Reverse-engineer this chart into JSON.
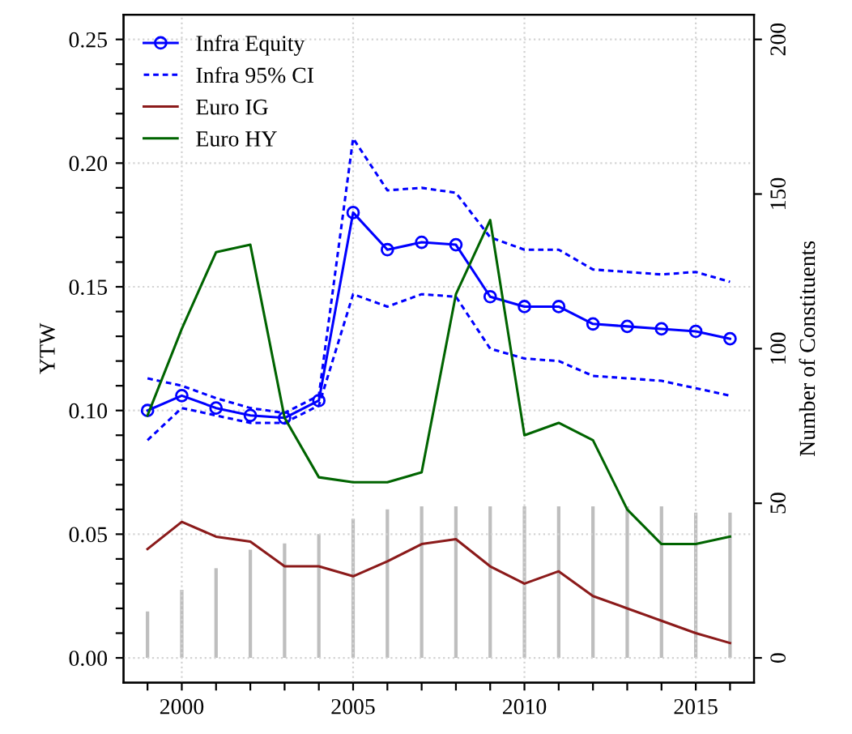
{
  "chart_data": {
    "type": "line",
    "ylabel": "YTW",
    "y2label": "Number of Constituents",
    "x": [
      1999,
      2000,
      2001,
      2002,
      2003,
      2004,
      2005,
      2006,
      2007,
      2008,
      2009,
      2010,
      2011,
      2012,
      2013,
      2014,
      2015,
      2016
    ],
    "series": [
      {
        "name": "Infra Equity",
        "color": "#0000ff",
        "marker": "circle",
        "line_style": "solid",
        "values": [
          0.1,
          0.106,
          0.101,
          0.098,
          0.097,
          0.104,
          0.18,
          0.165,
          0.168,
          0.167,
          0.146,
          0.142,
          0.142,
          0.135,
          0.134,
          0.133,
          0.132,
          0.129
        ]
      },
      {
        "name": "Infra 95% CI",
        "color": "#0000ff",
        "line_style": "dashed",
        "values": [
          0.113,
          0.11,
          0.105,
          0.101,
          0.099,
          0.106,
          0.21,
          0.189,
          0.19,
          0.188,
          0.17,
          0.165,
          0.165,
          0.157,
          0.156,
          0.155,
          0.156,
          0.152
        ]
      },
      {
        "color": "#0000ff",
        "line_style": "dashed",
        "values": [
          0.088,
          0.101,
          0.098,
          0.095,
          0.095,
          0.102,
          0.147,
          0.142,
          0.147,
          0.146,
          0.125,
          0.121,
          0.12,
          0.114,
          0.113,
          0.112,
          0.109,
          0.106
        ]
      },
      {
        "name": "Euro IG",
        "color": "#8b1a1a",
        "line_style": "solid",
        "values": [
          0.044,
          0.055,
          0.049,
          0.047,
          0.037,
          0.037,
          0.033,
          0.039,
          0.046,
          0.048,
          0.037,
          0.03,
          0.035,
          0.025,
          0.02,
          0.015,
          0.01,
          0.006
        ]
      },
      {
        "name": "Euro HY",
        "color": "#006400",
        "line_style": "solid",
        "values": [
          0.098,
          0.133,
          0.164,
          0.167,
          0.097,
          0.073,
          0.071,
          0.071,
          0.075,
          0.147,
          0.177,
          0.09,
          0.095,
          0.088,
          0.06,
          0.046,
          0.046,
          0.049
        ]
      },
      {
        "type": "bar",
        "axis": "y2",
        "color": "#bebebe",
        "values": [
          15,
          22,
          29,
          35,
          37,
          40,
          45,
          48,
          49,
          49,
          49,
          49,
          49,
          49,
          49,
          49,
          47,
          47
        ]
      }
    ],
    "xlim": [
      1998.3,
      2016.7
    ],
    "xticks": [
      {
        "value": 1999,
        "label": null
      },
      2000,
      {
        "value": 2001,
        "label": null
      },
      {
        "value": 2002,
        "label": null
      },
      {
        "value": 2003,
        "label": null
      },
      {
        "value": 2004,
        "label": null
      },
      2005,
      {
        "value": 2006,
        "label": null
      },
      {
        "value": 2007,
        "label": null
      },
      {
        "value": 2008,
        "label": null
      },
      {
        "value": 2009,
        "label": null
      },
      2010,
      {
        "value": 2011,
        "label": null
      },
      {
        "value": 2012,
        "label": null
      },
      {
        "value": 2013,
        "label": null
      },
      {
        "value": 2014,
        "label": null
      },
      2015,
      {
        "value": 2016,
        "label": null
      }
    ],
    "ylim": [
      -0.01,
      0.26
    ],
    "yticks": [
      {
        "value": 0,
        "label": "0.00"
      },
      {
        "value": 0.01,
        "label": null
      },
      {
        "value": 0.02,
        "label": null
      },
      {
        "value": 0.03,
        "label": null
      },
      {
        "value": 0.04,
        "label": null
      },
      {
        "value": 0.05,
        "label": "0.05"
      },
      {
        "value": 0.06,
        "label": null
      },
      {
        "value": 0.07,
        "label": null
      },
      {
        "value": 0.08,
        "label": null
      },
      {
        "value": 0.09,
        "label": null
      },
      {
        "value": 0.1,
        "label": "0.10"
      },
      {
        "value": 0.11,
        "label": null
      },
      {
        "value": 0.12,
        "label": null
      },
      {
        "value": 0.13,
        "label": null
      },
      {
        "value": 0.14,
        "label": null
      },
      {
        "value": 0.15,
        "label": "0.15"
      },
      {
        "value": 0.16,
        "label": null
      },
      {
        "value": 0.17,
        "label": null
      },
      {
        "value": 0.18,
        "label": null
      },
      {
        "value": 0.19,
        "label": null
      },
      {
        "value": 0.2,
        "label": "0.20"
      },
      {
        "value": 0.21,
        "label": null
      },
      {
        "value": 0.22,
        "label": null
      },
      {
        "value": 0.23,
        "label": null
      },
      {
        "value": 0.24,
        "label": null
      },
      {
        "value": 0.25,
        "label": "0.25"
      }
    ],
    "y2lim": [
      -8,
      208
    ],
    "y2ticks": [
      0,
      50,
      100,
      150,
      200
    ],
    "grid": true,
    "legend": "top left"
  }
}
